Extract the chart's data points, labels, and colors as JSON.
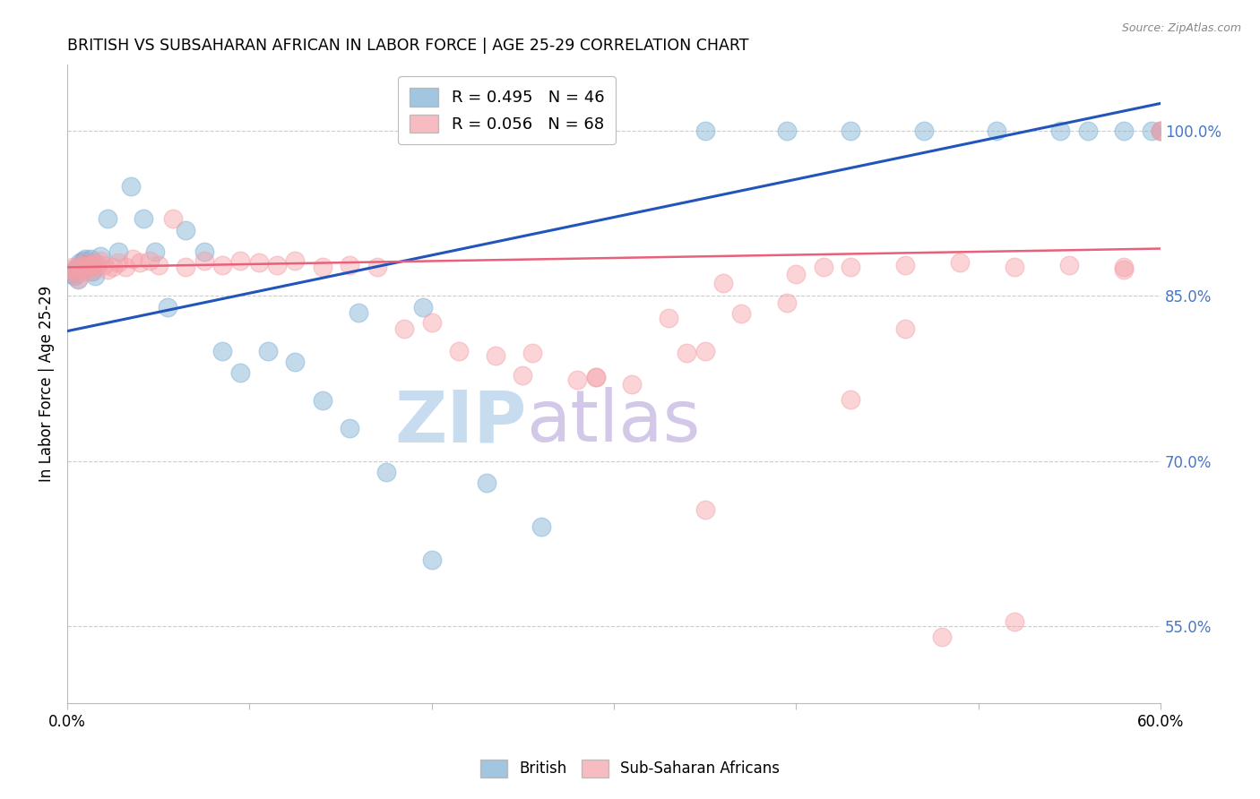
{
  "title": "BRITISH VS SUBSAHARAN AFRICAN IN LABOR FORCE | AGE 25-29 CORRELATION CHART",
  "source": "Source: ZipAtlas.com",
  "ylabel": "In Labor Force | Age 25-29",
  "xlim": [
    0.0,
    0.6
  ],
  "ylim": [
    0.48,
    1.06
  ],
  "xticks": [
    0.0,
    0.1,
    0.2,
    0.3,
    0.4,
    0.5,
    0.6
  ],
  "xticklabels": [
    "0.0%",
    "",
    "",
    "",
    "",
    "",
    "60.0%"
  ],
  "yticks_right": [
    0.55,
    0.7,
    0.85,
    1.0
  ],
  "ytick_right_labels": [
    "55.0%",
    "70.0%",
    "85.0%",
    "100.0%"
  ],
  "legend_r_british": "R = 0.495",
  "legend_n_british": "N = 46",
  "legend_r_ssa": "R = 0.056",
  "legend_n_ssa": "N = 68",
  "blue_color": "#7BAFD4",
  "pink_color": "#F4A0A8",
  "blue_line_color": "#2255BB",
  "pink_line_color": "#E8607A",
  "right_tick_color": "#4477CC",
  "watermark_text_color": "#C8DCF0",
  "watermark_atlas_color": "#D4C8E8",
  "british_x": [
    0.002,
    0.003,
    0.004,
    0.005,
    0.006,
    0.007,
    0.007,
    0.008,
    0.009,
    0.01,
    0.011,
    0.012,
    0.013,
    0.014,
    0.015,
    0.018,
    0.022,
    0.028,
    0.035,
    0.042,
    0.048,
    0.055,
    0.065,
    0.075,
    0.085,
    0.095,
    0.11,
    0.125,
    0.14,
    0.155,
    0.175,
    0.195,
    0.23,
    0.26,
    0.35,
    0.395,
    0.43,
    0.47,
    0.51,
    0.545,
    0.56,
    0.58,
    0.595,
    0.6,
    0.16,
    0.2
  ],
  "british_y": [
    0.87,
    0.872,
    0.868,
    0.875,
    0.865,
    0.88,
    0.878,
    0.876,
    0.882,
    0.884,
    0.879,
    0.876,
    0.884,
    0.872,
    0.868,
    0.886,
    0.92,
    0.89,
    0.95,
    0.92,
    0.89,
    0.84,
    0.91,
    0.89,
    0.8,
    0.78,
    0.8,
    0.79,
    0.755,
    0.73,
    0.69,
    0.84,
    0.68,
    0.64,
    1.0,
    1.0,
    1.0,
    1.0,
    1.0,
    1.0,
    1.0,
    1.0,
    1.0,
    1.0,
    0.835,
    0.61
  ],
  "ssa_x": [
    0.002,
    0.003,
    0.004,
    0.005,
    0.006,
    0.007,
    0.008,
    0.009,
    0.01,
    0.011,
    0.012,
    0.013,
    0.014,
    0.015,
    0.016,
    0.018,
    0.02,
    0.022,
    0.025,
    0.028,
    0.032,
    0.036,
    0.04,
    0.045,
    0.05,
    0.058,
    0.065,
    0.075,
    0.085,
    0.095,
    0.105,
    0.115,
    0.125,
    0.14,
    0.155,
    0.17,
    0.185,
    0.2,
    0.215,
    0.235,
    0.255,
    0.28,
    0.31,
    0.34,
    0.37,
    0.4,
    0.43,
    0.46,
    0.49,
    0.52,
    0.55,
    0.58,
    0.6,
    0.33,
    0.36,
    0.25,
    0.29,
    0.395,
    0.415,
    0.29,
    0.35,
    0.43,
    0.46,
    0.35,
    0.48,
    0.52,
    0.58,
    0.6
  ],
  "ssa_y": [
    0.874,
    0.876,
    0.872,
    0.87,
    0.866,
    0.878,
    0.876,
    0.872,
    0.88,
    0.878,
    0.876,
    0.872,
    0.878,
    0.88,
    0.876,
    0.882,
    0.878,
    0.874,
    0.876,
    0.88,
    0.876,
    0.884,
    0.88,
    0.882,
    0.878,
    0.92,
    0.876,
    0.882,
    0.878,
    0.882,
    0.88,
    0.878,
    0.882,
    0.876,
    0.878,
    0.876,
    0.82,
    0.826,
    0.8,
    0.796,
    0.798,
    0.774,
    0.77,
    0.798,
    0.834,
    0.87,
    0.876,
    0.878,
    0.88,
    0.876,
    0.878,
    0.874,
    1.0,
    0.83,
    0.862,
    0.778,
    0.776,
    0.844,
    0.876,
    0.776,
    0.656,
    0.756,
    0.82,
    0.8,
    0.54,
    0.554,
    0.876,
    1.0
  ]
}
